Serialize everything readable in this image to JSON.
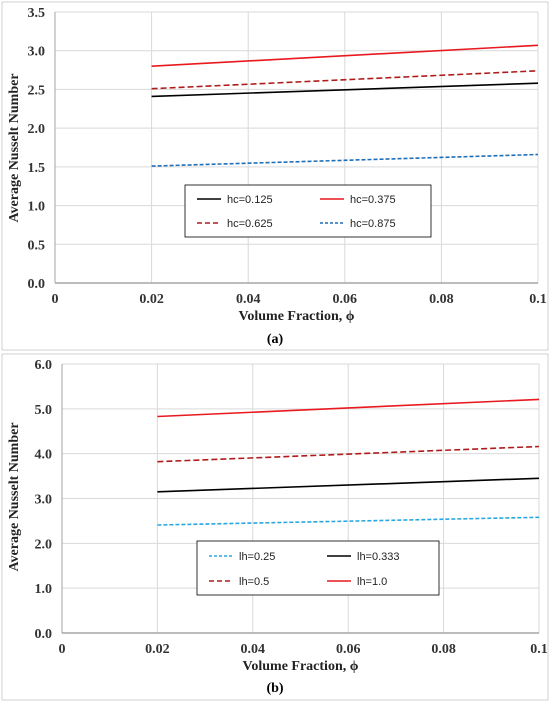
{
  "chart_data": [
    {
      "type": "line",
      "caption": "(a)",
      "xlabel": "Volume Fraction, ϕ",
      "ylabel": "Average Nusselt Number",
      "xlim": [
        0,
        0.1
      ],
      "ylim": [
        0,
        3.5
      ],
      "x_ticks": [
        "0",
        "0.02",
        "0.04",
        "0.06",
        "0.08",
        "0.1"
      ],
      "y_ticks": [
        "0.0",
        "0.5",
        "1.0",
        "1.5",
        "2.0",
        "2.5",
        "3.0",
        "3.5"
      ],
      "grid": true,
      "legend_position": "bottom-center",
      "series": [
        {
          "name": "hc=0.125",
          "x": [
            0.02,
            0.1
          ],
          "y": [
            2.41,
            2.58
          ],
          "color": "#000000",
          "dash": "solid"
        },
        {
          "name": "hc=0.375",
          "x": [
            0.02,
            0.1
          ],
          "y": [
            2.8,
            3.07
          ],
          "color": "#e8191f",
          "dash": "solid"
        },
        {
          "name": "hc=0.625",
          "x": [
            0.02,
            0.1
          ],
          "y": [
            2.51,
            2.74
          ],
          "color": "#b01c1c",
          "dash": "dashed"
        },
        {
          "name": "hc=0.875",
          "x": [
            0.02,
            0.1
          ],
          "y": [
            1.51,
            1.66
          ],
          "color": "#1f6fb8",
          "dash": "dashed"
        }
      ]
    },
    {
      "type": "line",
      "caption": "(b)",
      "xlabel": "Volume Fraction, ϕ",
      "ylabel": "Average Nusselt Number",
      "xlim": [
        0,
        0.1
      ],
      "ylim": [
        0,
        6
      ],
      "x_ticks": [
        "0",
        "0.02",
        "0.04",
        "0.06",
        "0.08",
        "0.1"
      ],
      "y_ticks": [
        "0.0",
        "1.0",
        "2.0",
        "3.0",
        "4.0",
        "5.0",
        "6.0"
      ],
      "grid": true,
      "legend_position": "bottom-center",
      "series": [
        {
          "name": "lh=0.25",
          "x": [
            0.02,
            0.1
          ],
          "y": [
            2.41,
            2.58
          ],
          "color": "#29a8e0",
          "dash": "dashed"
        },
        {
          "name": "lh=0.333",
          "x": [
            0.02,
            0.1
          ],
          "y": [
            3.15,
            3.45
          ],
          "color": "#000000",
          "dash": "solid"
        },
        {
          "name": "lh=0.5",
          "x": [
            0.02,
            0.1
          ],
          "y": [
            3.82,
            4.16
          ],
          "color": "#b01c1c",
          "dash": "dashed"
        },
        {
          "name": "lh=1.0",
          "x": [
            0.02,
            0.1
          ],
          "y": [
            4.83,
            5.21
          ],
          "color": "#e8191f",
          "dash": "solid"
        }
      ]
    }
  ]
}
